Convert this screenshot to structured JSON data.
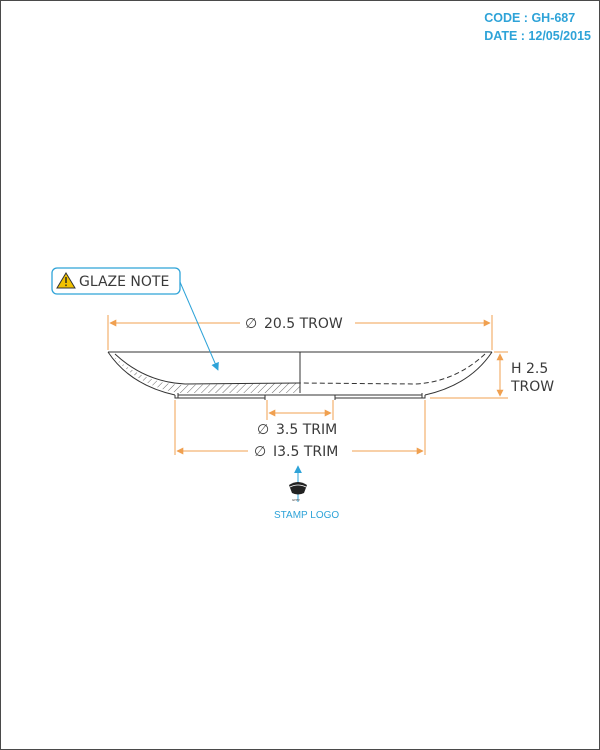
{
  "header": {
    "code": "CODE : GH-687",
    "date": "DATE : 12/05/2015"
  },
  "note": {
    "label": "GLAZE NOTE",
    "icon": "warning-triangle-icon"
  },
  "dimensions": {
    "overall_diameter": "20.5 TROW",
    "height_value": "H 2.5",
    "height_unit": "TROW",
    "inner_trim": "3.5 TRIM",
    "foot_trim": "I3.5 TRIM",
    "diameter_symbol": "∅"
  },
  "stamp": {
    "label": "STAMP LOGO",
    "mark": "ɢʜғᴘ"
  },
  "colors": {
    "dimension": "#f0a050",
    "annotation": "#2ea3d8",
    "outline": "#333333"
  }
}
